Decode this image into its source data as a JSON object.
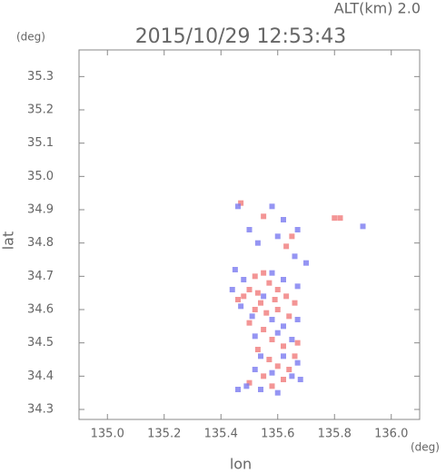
{
  "chart_data": {
    "type": "scatter",
    "title": "2015/10/29 12:53:43",
    "subtitle": "ALT(km) 2.0",
    "y_unit": "(deg)",
    "x_unit": "(deg)",
    "xlabel": "lon",
    "ylabel": "lat",
    "xlim": [
      134.9,
      136.1
    ],
    "ylim": [
      34.27,
      35.38
    ],
    "xticks": [
      {
        "value": 135.0,
        "label": "135.0"
      },
      135.2,
      135.4,
      135.6,
      135.8,
      {
        "value": 136.0,
        "label": "136.0"
      }
    ],
    "yticks": [
      34.3,
      34.4,
      34.5,
      34.6,
      34.7,
      34.8,
      34.9,
      {
        "value": 35.0,
        "label": "35.0"
      },
      35.1,
      35.2,
      35.3
    ],
    "series": [
      {
        "color": "#f07a7a",
        "x": [
          135.47,
          135.8,
          135.82,
          135.55,
          135.63,
          135.65,
          135.52,
          135.55,
          135.48,
          135.46,
          135.5,
          135.53,
          135.57,
          135.6,
          135.63,
          135.66,
          135.52,
          135.56,
          135.6,
          135.64,
          135.5,
          135.55,
          135.58,
          135.62,
          135.67,
          135.53,
          135.57,
          135.6,
          135.64,
          135.55,
          135.5,
          135.58,
          135.62,
          135.66,
          135.59,
          135.54
        ],
        "values": [
          34.92,
          34.875,
          34.875,
          34.88,
          34.79,
          34.82,
          34.7,
          34.71,
          34.64,
          34.63,
          34.66,
          34.65,
          34.68,
          34.66,
          34.64,
          34.62,
          34.6,
          34.59,
          34.6,
          34.58,
          34.56,
          34.54,
          34.51,
          34.49,
          34.5,
          34.48,
          34.45,
          34.43,
          34.42,
          34.4,
          34.38,
          34.37,
          34.39,
          34.46,
          34.63,
          34.62
        ]
      },
      {
        "color": "#7a7af0",
        "x": [
          135.46,
          135.58,
          135.9,
          135.5,
          135.53,
          135.62,
          135.67,
          135.6,
          135.66,
          135.7,
          135.45,
          135.48,
          135.58,
          135.62,
          135.67,
          135.44,
          135.47,
          135.51,
          135.58,
          135.62,
          135.67,
          135.52,
          135.6,
          135.65,
          135.54,
          135.62,
          135.67,
          135.52,
          135.58,
          135.65,
          135.49,
          135.46,
          135.54,
          135.6,
          135.68,
          135.55
        ],
        "values": [
          34.91,
          34.91,
          34.85,
          34.84,
          34.8,
          34.87,
          34.84,
          34.82,
          34.76,
          34.74,
          34.72,
          34.69,
          34.71,
          34.69,
          34.67,
          34.66,
          34.61,
          34.58,
          34.57,
          34.55,
          34.57,
          34.52,
          34.53,
          34.51,
          34.46,
          34.46,
          34.44,
          34.42,
          34.41,
          34.4,
          34.37,
          34.36,
          34.36,
          34.35,
          34.39,
          34.64
        ]
      }
    ]
  }
}
